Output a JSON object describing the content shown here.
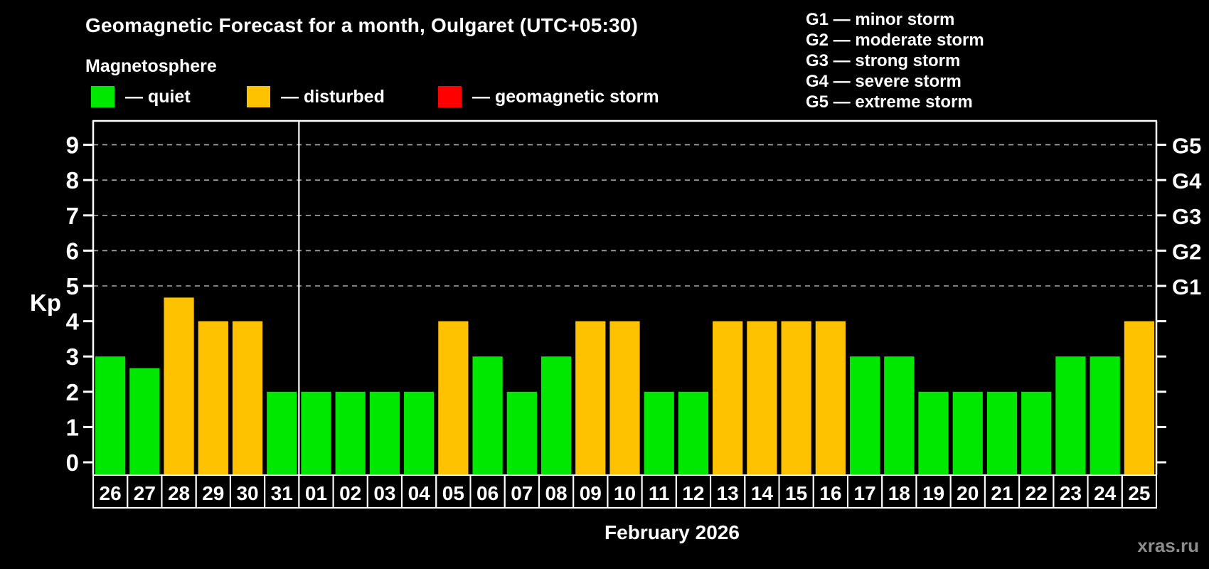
{
  "header": {
    "title": "Geomagnetic Forecast for a month, Oulgaret (UTC+05:30)",
    "subtitle": "Magnetosphere"
  },
  "legend": {
    "items": [
      {
        "key": "quiet",
        "label": "— quiet",
        "color": "#00e800"
      },
      {
        "key": "disturbed",
        "label": "— disturbed",
        "color": "#ffc200"
      },
      {
        "key": "storm",
        "label": "— geomagnetic storm",
        "color": "#ff0000"
      }
    ]
  },
  "g_scale_legend": [
    "G1 — minor storm",
    "G2 — moderate storm",
    "G3 — strong storm",
    "G4 — severe storm",
    "G5 — extreme storm"
  ],
  "watermark": "xras.ru",
  "chart_data": {
    "type": "bar",
    "title": "Geomagnetic Forecast for a month, Oulgaret (UTC+05:30)",
    "xlabel": "February 2026",
    "ylabel": "Kp",
    "ylim": [
      0,
      9
    ],
    "y_ticks": [
      0,
      1,
      2,
      3,
      4,
      5,
      6,
      7,
      8,
      9
    ],
    "grid_levels": [
      5,
      6,
      7,
      8,
      9
    ],
    "grid_style": "dashed horizontal gray lines at Kp 5-9",
    "legend_position": "top-left (quiet/disturbed/storm), top-right (G-scale)",
    "right_axis": [
      {
        "kp": 5,
        "label": "G1"
      },
      {
        "kp": 6,
        "label": "G2"
      },
      {
        "kp": 7,
        "label": "G3"
      },
      {
        "kp": 8,
        "label": "G4"
      },
      {
        "kp": 9,
        "label": "G5"
      }
    ],
    "categories": [
      "26",
      "27",
      "28",
      "29",
      "30",
      "31",
      "01",
      "02",
      "03",
      "04",
      "05",
      "06",
      "07",
      "08",
      "09",
      "10",
      "11",
      "12",
      "13",
      "14",
      "15",
      "16",
      "17",
      "18",
      "19",
      "20",
      "21",
      "22",
      "23",
      "24",
      "25"
    ],
    "values": [
      3,
      2.67,
      4.67,
      4,
      4,
      2,
      2,
      2,
      2,
      2,
      4,
      3,
      2,
      3,
      4,
      4,
      2,
      2,
      4,
      4,
      4,
      4,
      3,
      3,
      2,
      2,
      2,
      2,
      3,
      3,
      4
    ],
    "states": [
      "quiet",
      "quiet",
      "disturbed",
      "disturbed",
      "disturbed",
      "quiet",
      "quiet",
      "quiet",
      "quiet",
      "quiet",
      "disturbed",
      "quiet",
      "quiet",
      "quiet",
      "disturbed",
      "disturbed",
      "quiet",
      "quiet",
      "disturbed",
      "disturbed",
      "disturbed",
      "disturbed",
      "quiet",
      "quiet",
      "quiet",
      "quiet",
      "quiet",
      "quiet",
      "quiet",
      "quiet",
      "disturbed"
    ],
    "month_separator_slot": 6,
    "colors": {
      "quiet": "#00e800",
      "disturbed": "#ffc200",
      "storm": "#ff0000"
    }
  }
}
